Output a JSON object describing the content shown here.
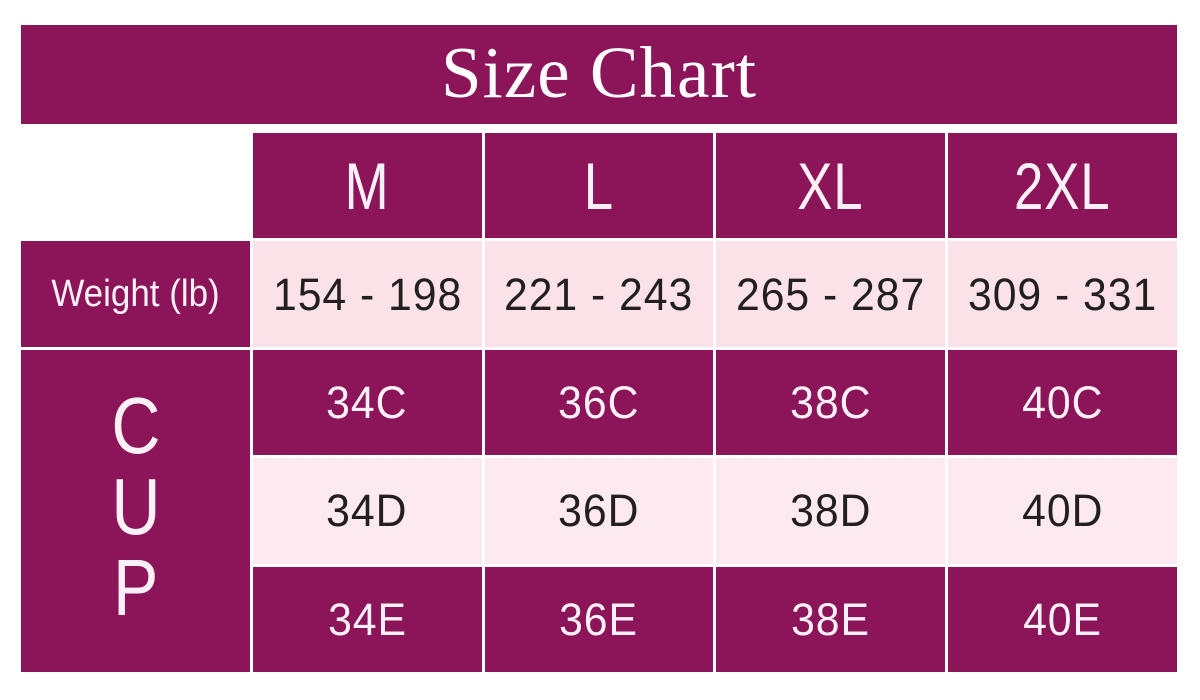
{
  "title": "Size Chart",
  "colors": {
    "magenta": "#8c1458",
    "pink_weight": "#fbe2e9",
    "pink_cup": "#fdeaf0",
    "text_dark": "#221f20",
    "text_light": "#faf0f6",
    "page_bg": "#ffffff"
  },
  "cup_label_letters": [
    "C",
    "U",
    "P"
  ],
  "chart_data": {
    "type": "table",
    "title": "Size Chart",
    "columns": [
      "",
      "M",
      "L",
      "XL",
      "2XL"
    ],
    "row_group_labels": [
      "Weight (lb)",
      "CUP"
    ],
    "rows": [
      [
        "Weight (lb)",
        "154 - 198",
        "221 - 243",
        "265 - 287",
        "309 - 331"
      ],
      [
        "CUP",
        "34C",
        "36C",
        "38C",
        "40C"
      ],
      [
        "CUP",
        "34D",
        "36D",
        "38D",
        "40D"
      ],
      [
        "CUP",
        "34E",
        "36E",
        "38E",
        "40E"
      ]
    ]
  }
}
